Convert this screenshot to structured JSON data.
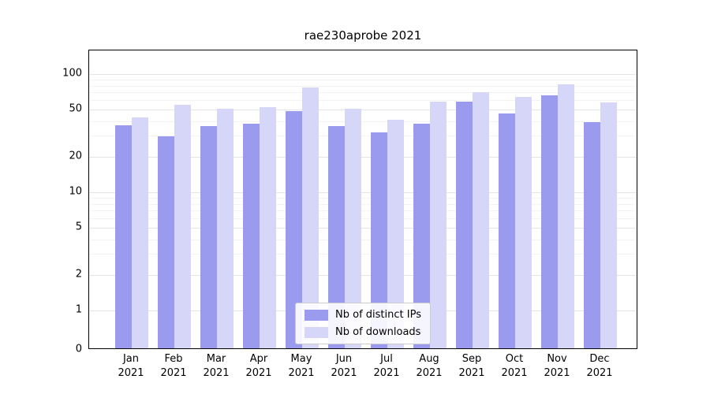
{
  "chart_data": {
    "type": "bar",
    "title": "rae230aprobe 2021",
    "year": "2021",
    "categories": [
      "Jan",
      "Feb",
      "Mar",
      "Apr",
      "May",
      "Jun",
      "Jul",
      "Aug",
      "Sep",
      "Oct",
      "Nov",
      "Dec"
    ],
    "series": [
      {
        "name": "Nb of distinct IPs",
        "color": "#9a9aef",
        "values": [
          36,
          29,
          35,
          37,
          47,
          35,
          31,
          37,
          57,
          45,
          64,
          38
        ]
      },
      {
        "name": "Nb of downloads",
        "color": "#d6d6f8",
        "values": [
          42,
          53,
          49,
          51,
          75,
          49,
          40,
          57,
          68,
          62,
          80,
          56
        ]
      }
    ],
    "yscale": "symlog",
    "yticks": [
      0,
      1,
      2,
      5,
      10,
      20,
      50,
      100
    ],
    "ylim": [
      0,
      160
    ],
    "xlabel": "",
    "ylabel": "",
    "grid": true,
    "legend_position": "lower center"
  },
  "colors": {
    "background": "#ffffff",
    "axis_border": "#000000",
    "grid_major": "#e4e4e4",
    "grid_minor": "#f3f3f3"
  }
}
